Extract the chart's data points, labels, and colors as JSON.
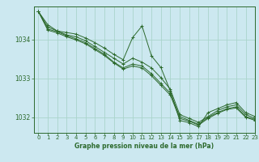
{
  "title": "Graphe pression niveau de la mer (hPa)",
  "background_color": "#cce8f0",
  "grid_color": "#aad4cc",
  "line_color": "#2d6a2d",
  "xlim": [
    -0.5,
    23
  ],
  "ylim": [
    1031.6,
    1034.85
  ],
  "yticks": [
    1032,
    1033,
    1034
  ],
  "xticks": [
    0,
    1,
    2,
    3,
    4,
    5,
    6,
    7,
    8,
    9,
    10,
    11,
    12,
    13,
    14,
    15,
    16,
    17,
    18,
    19,
    20,
    21,
    22,
    23
  ],
  "series": [
    [
      1034.72,
      1034.38,
      1034.22,
      1034.18,
      1034.14,
      1034.04,
      1033.92,
      1033.78,
      1033.62,
      1033.48,
      1034.05,
      1034.35,
      1033.58,
      1033.28,
      1032.68,
      1031.92,
      1031.86,
      1031.76,
      1032.12,
      1032.22,
      1032.32,
      1032.38,
      1032.12,
      1032.02
    ],
    [
      1034.72,
      1034.32,
      1034.22,
      1034.12,
      1034.07,
      1033.97,
      1033.82,
      1033.67,
      1033.52,
      1033.37,
      1033.52,
      1033.42,
      1033.27,
      1033.02,
      1032.72,
      1032.07,
      1031.97,
      1031.87,
      1032.02,
      1032.17,
      1032.27,
      1032.32,
      1032.07,
      1031.97
    ],
    [
      1034.72,
      1034.27,
      1034.2,
      1034.1,
      1034.02,
      1033.92,
      1033.77,
      1033.62,
      1033.42,
      1033.27,
      1033.37,
      1033.32,
      1033.12,
      1032.87,
      1032.62,
      1032.02,
      1031.92,
      1031.82,
      1032.0,
      1032.12,
      1032.22,
      1032.27,
      1032.02,
      1031.94
    ],
    [
      1034.72,
      1034.24,
      1034.17,
      1034.07,
      1033.99,
      1033.89,
      1033.74,
      1033.59,
      1033.4,
      1033.24,
      1033.32,
      1033.27,
      1033.07,
      1032.82,
      1032.57,
      1031.97,
      1031.9,
      1031.8,
      1031.97,
      1032.1,
      1032.2,
      1032.24,
      1032.0,
      1031.92
    ]
  ]
}
